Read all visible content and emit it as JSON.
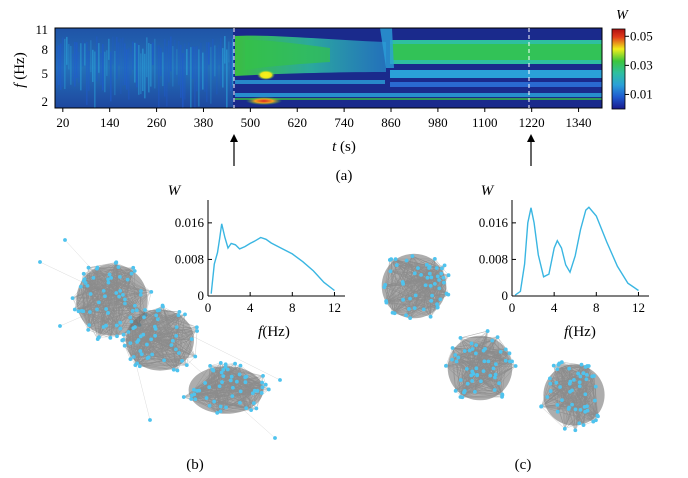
{
  "panel_a": {
    "caption": "(a)",
    "y_label_var": "f",
    "y_label_unit": "(Hz)",
    "x_label_var": "t",
    "x_label_unit": "(s)",
    "colorbar_title": "W",
    "colorbar_ticks": [
      "0.05",
      "0.03",
      "0.01"
    ],
    "colorbar_tick_values": [
      0.05,
      0.03,
      0.01
    ],
    "colorbar_range": [
      0.0,
      0.055
    ],
    "x_ticks": [
      "20",
      "140",
      "260",
      "380",
      "500",
      "620",
      "740",
      "860",
      "980",
      "1100",
      "1220",
      "1340"
    ],
    "x_tick_values": [
      20,
      140,
      260,
      380,
      500,
      620,
      740,
      860,
      980,
      1100,
      1220,
      1340
    ],
    "y_ticks": [
      "11",
      "8",
      "5",
      "2"
    ],
    "y_tick_values": [
      11,
      8,
      5,
      2
    ],
    "x_range": [
      0,
      1400
    ],
    "y_range": [
      1,
      11
    ],
    "marker_times": [
      500,
      1220
    ],
    "colors": {
      "low": "#1a2a8c",
      "mid_low": "#2aa0d8",
      "mid": "#28b89a",
      "high": "#33c24a",
      "peak_yellow": "#f3f01a",
      "peak_red": "#d22020"
    }
  },
  "panel_b": {
    "caption": "(b)",
    "inset_y_label": "W",
    "inset_x_label_var": "f",
    "inset_x_label_unit": "(Hz)",
    "inset_y_ticks": [
      "0.016",
      "0.008",
      "0"
    ],
    "inset_x_ticks": [
      "0",
      "4",
      "8",
      "12"
    ]
  },
  "panel_c": {
    "caption": "(c)",
    "inset_y_label": "W",
    "inset_x_label_var": "f",
    "inset_x_label_unit": "(Hz)",
    "inset_y_ticks": [
      "0.016",
      "0.008",
      "0"
    ],
    "inset_x_ticks": [
      "0",
      "4",
      "8",
      "12"
    ]
  },
  "chart_data": [
    {
      "type": "heatmap",
      "xlabel": "t (s)",
      "ylabel": "f (Hz)",
      "xlim": [
        0,
        1400
      ],
      "ylim": [
        1,
        11
      ],
      "x_ticks": [
        20,
        140,
        260,
        380,
        500,
        620,
        740,
        860,
        980,
        1100,
        1220,
        1340
      ],
      "y_ticks": [
        2,
        5,
        8,
        11
      ],
      "colorbar_label": "W",
      "colorbar_ticks": [
        0.01,
        0.03,
        0.05
      ],
      "features": [
        {
          "t_range": [
            20,
            500
          ],
          "f_range": [
            1,
            11
          ],
          "level": 0.008
        },
        {
          "t_range": [
            500,
            860
          ],
          "f_range": [
            5.5,
            9.5
          ],
          "level": 0.025
        },
        {
          "t": 560,
          "f": 5.1,
          "level": 0.045
        },
        {
          "t": 560,
          "f": 1.7,
          "level": 0.055
        },
        {
          "t_range": [
            880,
            1400
          ],
          "f_range": [
            5.6,
            8.3
          ],
          "level": 0.022
        },
        {
          "t_range": [
            880,
            1400
          ],
          "f_range": [
            3.5,
            4.6
          ],
          "level": 0.015
        },
        {
          "t_range": [
            880,
            1400
          ],
          "f_range": [
            1.4,
            2.4
          ],
          "level": 0.018
        }
      ]
    },
    {
      "type": "line",
      "xlabel": "f (Hz)",
      "ylabel": "W",
      "xlim": [
        0,
        13
      ],
      "ylim": [
        0,
        0.021
      ],
      "x_ticks": [
        0,
        4,
        8,
        12
      ],
      "y_ticks": [
        0,
        0.008,
        0.016
      ],
      "series": [
        {
          "x": [
            0.3,
            0.6,
            0.9,
            1.1,
            1.3,
            1.6,
            1.9,
            2.2,
            2.6,
            3.0,
            3.5,
            4.0,
            4.5,
            5.0,
            5.5,
            6.0,
            7.0,
            8.0,
            9.0,
            10.0,
            11.0,
            12.0
          ],
          "y": [
            0.0005,
            0.007,
            0.0095,
            0.0125,
            0.0158,
            0.0128,
            0.0105,
            0.0115,
            0.0112,
            0.0103,
            0.0108,
            0.0115,
            0.0121,
            0.0128,
            0.0124,
            0.0116,
            0.0104,
            0.0092,
            0.0075,
            0.0055,
            0.003,
            0.0012
          ]
        }
      ]
    },
    {
      "type": "line",
      "xlabel": "f (Hz)",
      "ylabel": "W",
      "xlim": [
        0,
        13
      ],
      "ylim": [
        0,
        0.021
      ],
      "x_ticks": [
        0,
        4,
        8,
        12
      ],
      "y_ticks": [
        0,
        0.008,
        0.016
      ],
      "series": [
        {
          "x": [
            0.3,
            0.8,
            1.2,
            1.5,
            1.8,
            2.1,
            2.5,
            3.0,
            3.5,
            4.0,
            4.3,
            4.7,
            5.1,
            5.5,
            6.0,
            6.5,
            7.0,
            7.3,
            8.0,
            9.0,
            10.0,
            11.0,
            12.0
          ],
          "y": [
            0.0002,
            0.001,
            0.007,
            0.016,
            0.0193,
            0.016,
            0.009,
            0.0042,
            0.0048,
            0.0105,
            0.0121,
            0.0105,
            0.0068,
            0.0052,
            0.0088,
            0.0145,
            0.0188,
            0.0194,
            0.0175,
            0.0118,
            0.0065,
            0.0028,
            0.0012
          ]
        }
      ]
    }
  ]
}
